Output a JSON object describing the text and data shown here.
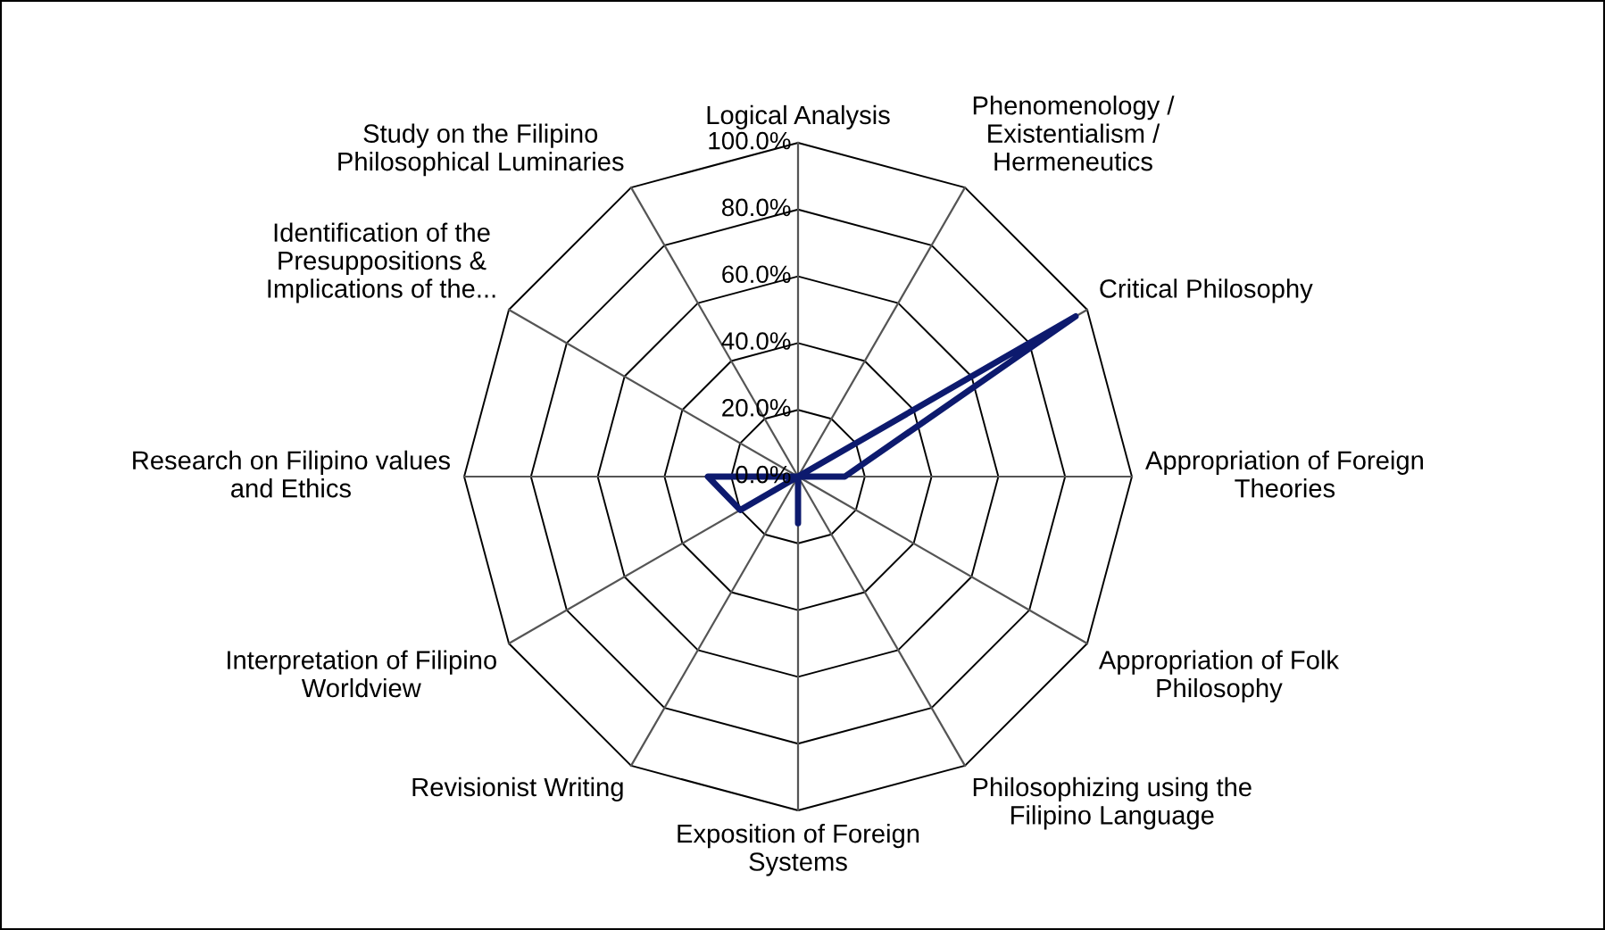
{
  "chart_data": {
    "type": "radar",
    "categories": [
      "Logical Analysis",
      "Phenomenology /\nExistentialism /\nHermeneutics",
      "Critical Philosophy",
      "Appropriation of Foreign\nTheories",
      "Appropriation of Folk\nPhilosophy",
      "Philosophizing using the\nFilipino Language",
      "Exposition of Foreign\nSystems",
      "Revisionist Writing",
      "Interpretation of Filipino\nWorldview",
      "Research on Filipino values\nand Ethics",
      "Identification of the\nPresuppositions &\nImplications of the...",
      "Study on the Filipino\nPhilosophical Luminaries"
    ],
    "series": [
      {
        "color": "#0d1a6e",
        "values": [
          0,
          0,
          96,
          14,
          0,
          0,
          14,
          0,
          20,
          27,
          0,
          0
        ]
      }
    ],
    "ylim": [
      0,
      100
    ],
    "yticks": [
      {
        "value": 0,
        "label": "0.0%"
      },
      {
        "value": 20,
        "label": "20.0%"
      },
      {
        "value": 40,
        "label": "40.0%"
      },
      {
        "value": 60,
        "label": "60.0%"
      },
      {
        "value": 80,
        "label": "80.0%"
      },
      {
        "value": 100,
        "label": "100.0%"
      }
    ],
    "grid": true,
    "marker": "none",
    "line_style": "solid"
  }
}
